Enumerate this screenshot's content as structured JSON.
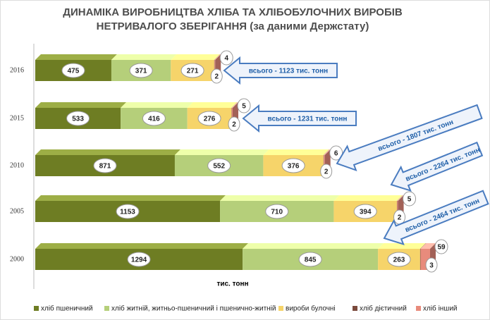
{
  "chart_data": {
    "type": "bar",
    "orientation": "horizontal",
    "stacked": true,
    "title": [
      "ДИНАМІКА ВИРОБНИЦТВА ХЛІБА ТА ХЛІБОБУЛОЧНИХ ВИРОБІВ",
      "НЕТРИВАЛОГО ЗБЕРІГАННЯ (за даними Держстату)"
    ],
    "x_label": "тис. тонн",
    "categories": [
      "2016",
      "2015",
      "2010",
      "2005",
      "2000"
    ],
    "series": [
      {
        "name": "хліб пшеничний",
        "color": "#6e7d23",
        "values": [
          475,
          533,
          871,
          1153,
          1294
        ]
      },
      {
        "name": "хліб житній, житньо-пшеничний і пшенично-житній",
        "color": "#b5cf7a",
        "values": [
          371,
          416,
          552,
          710,
          845
        ]
      },
      {
        "name": "вироби булочні",
        "color": "#f6d46a",
        "values": [
          271,
          276,
          376,
          394,
          263
        ]
      },
      {
        "name": "хліб дієтичний",
        "color": "#7b4a3c",
        "values": [
          2,
          2,
          2,
          2,
          3
        ]
      },
      {
        "name": "хліб інший",
        "color": "#e88b7c",
        "values": [
          4,
          5,
          6,
          5,
          59
        ]
      }
    ],
    "annotations": [
      "всього - 1123 тис. тонн",
      "всього - 1231 тис. тонн",
      "всього - 1807 тис. тонн",
      "всього -  2264 тис. тонн",
      "всього - 2464 тис. тонн"
    ],
    "legend": "bottom"
  }
}
